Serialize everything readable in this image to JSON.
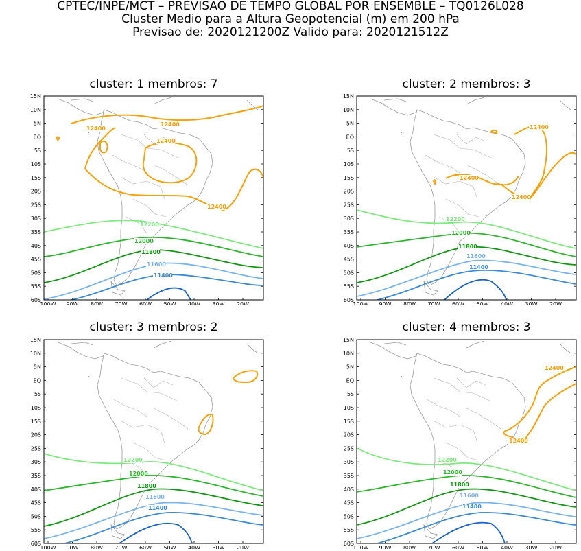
{
  "header": {
    "line1": "CPTEC/INPE/MCT – PREVISAO DE TEMPO GLOBAL POR ENSEMBLE – TQ0126L028",
    "line2": "Cluster Medio para a Altura Geopotencial (m) em 200 hPa",
    "line3": "Previsao de: 2020121200Z    Valido para: 2020121512Z"
  },
  "lat_ticks": [
    "15N",
    "10N",
    "5N",
    "EQ",
    "5S",
    "10S",
    "15S",
    "20S",
    "25S",
    "30S",
    "35S",
    "40S",
    "45S",
    "50S",
    "55S",
    "60S"
  ],
  "lon_ticks": [
    "100W",
    "90W",
    "80W",
    "70W",
    "60W",
    "50W",
    "40W",
    "30W",
    "20W"
  ],
  "contour_colors": {
    "12400": "#f5a20a",
    "12200": "#7fe87f",
    "12000": "#2db52d",
    "11800": "#119611",
    "11600": "#7ab4ef",
    "11400": "#3a8ad6",
    "11200": "#1c63c8"
  },
  "panels": [
    {
      "title": "cluster:  1    membros:  7",
      "labels": {
        "l12400a": "12400",
        "l12400b": "12400",
        "l12400c": "12400",
        "l12400d": "12400",
        "l12200": "12200",
        "l12000": "12000",
        "l11800": "11800",
        "l11600": "11600",
        "l11400": "11400"
      }
    },
    {
      "title": "cluster:  2    membros:  3",
      "labels": {
        "l12400a": "12400",
        "l12400b": "12400",
        "l12400c": "12400",
        "l12200": "12200",
        "l12000": "12000",
        "l11800": "11800",
        "l11600": "11600",
        "l11400": "11400"
      }
    },
    {
      "title": "cluster:  3    membros:  2",
      "labels": {
        "l12200": "12200",
        "l12000": "12000",
        "l11800": "11800",
        "l11600": "11600",
        "l11400": "11400"
      }
    },
    {
      "title": "cluster:  4    membros:  3",
      "labels": {
        "l12400a": "12400",
        "l12400b": "12400",
        "l12200": "12200",
        "l12000": "12000",
        "l11800": "11800",
        "l11600": "11600",
        "l11400": "11400"
      }
    }
  ]
}
